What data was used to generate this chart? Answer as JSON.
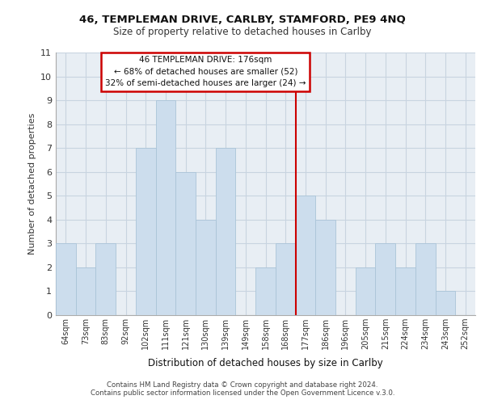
{
  "title1": "46, TEMPLEMAN DRIVE, CARLBY, STAMFORD, PE9 4NQ",
  "title2": "Size of property relative to detached houses in Carlby",
  "xlabel": "Distribution of detached houses by size in Carlby",
  "ylabel": "Number of detached properties",
  "bar_labels": [
    "64sqm",
    "73sqm",
    "83sqm",
    "92sqm",
    "102sqm",
    "111sqm",
    "121sqm",
    "130sqm",
    "139sqm",
    "149sqm",
    "158sqm",
    "168sqm",
    "177sqm",
    "186sqm",
    "196sqm",
    "205sqm",
    "215sqm",
    "224sqm",
    "234sqm",
    "243sqm",
    "252sqm"
  ],
  "bar_values": [
    3,
    2,
    3,
    0,
    7,
    9,
    6,
    4,
    7,
    0,
    2,
    3,
    5,
    4,
    0,
    2,
    3,
    2,
    3,
    1,
    0
  ],
  "bar_color": "#ccdded",
  "bar_edge_color": "#aac4d8",
  "grid_color": "#c8d4e0",
  "background_color": "#e8eef4",
  "vline_color": "#cc0000",
  "vline_x_index": 12,
  "annotation_title": "46 TEMPLEMAN DRIVE: 176sqm",
  "annotation_line1": "← 68% of detached houses are smaller (52)",
  "annotation_line2": "32% of semi-detached houses are larger (24) →",
  "annotation_box_color": "#ffffff",
  "annotation_box_edge": "#cc0000",
  "footer1": "Contains HM Land Registry data © Crown copyright and database right 2024.",
  "footer2": "Contains public sector information licensed under the Open Government Licence v.3.0.",
  "ylim": [
    0,
    11
  ],
  "yticks": [
    0,
    1,
    2,
    3,
    4,
    5,
    6,
    7,
    8,
    9,
    10,
    11
  ]
}
